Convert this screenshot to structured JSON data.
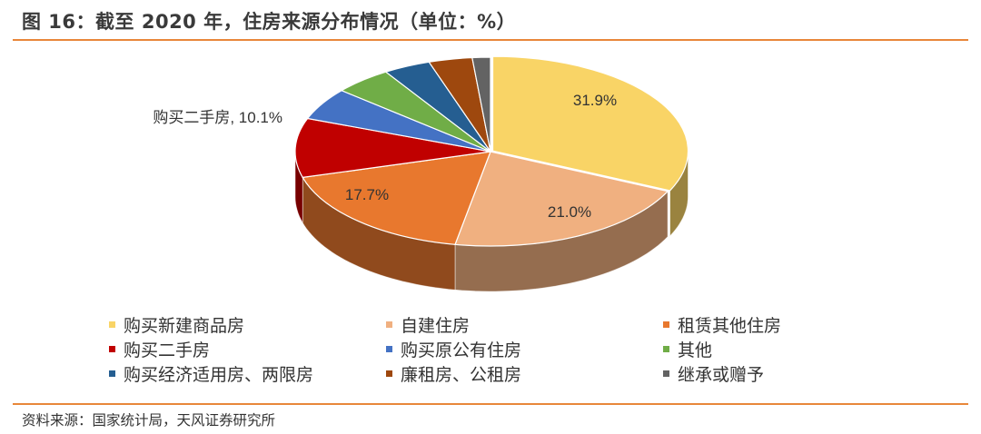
{
  "header": {
    "title": "图 16：截至 2020 年，住房来源分布情况（单位：%）"
  },
  "footer": {
    "source": "资料来源：国家统计局，天风证券研究所"
  },
  "chart_data": {
    "type": "pie",
    "title": "图 16：截至 2020 年，住房来源分布情况（单位：%）",
    "categories": [
      "购买新建商品房",
      "自建住房",
      "租赁其他住房",
      "购买二手房",
      "购买原公有住房",
      "其他",
      "购买经济适用房、两限房",
      "廉租房、公租房",
      "继承或赠予"
    ],
    "values": [
      31.9,
      21.0,
      17.7,
      10.1,
      5.5,
      4.8,
      3.9,
      3.6,
      1.5
    ],
    "data_labels": [
      "31.9%",
      "21.0%",
      "17.7%",
      "购买二手房, 10.1%",
      "",
      "",
      "",
      "",
      ""
    ],
    "colors": [
      "#f9d466",
      "#f0b080",
      "#e8782e",
      "#c00000",
      "#4472c4",
      "#70ad47",
      "#255e91",
      "#9e480e",
      "#636363"
    ],
    "legend_position": "bottom",
    "style": "3d-exploded-pie"
  }
}
